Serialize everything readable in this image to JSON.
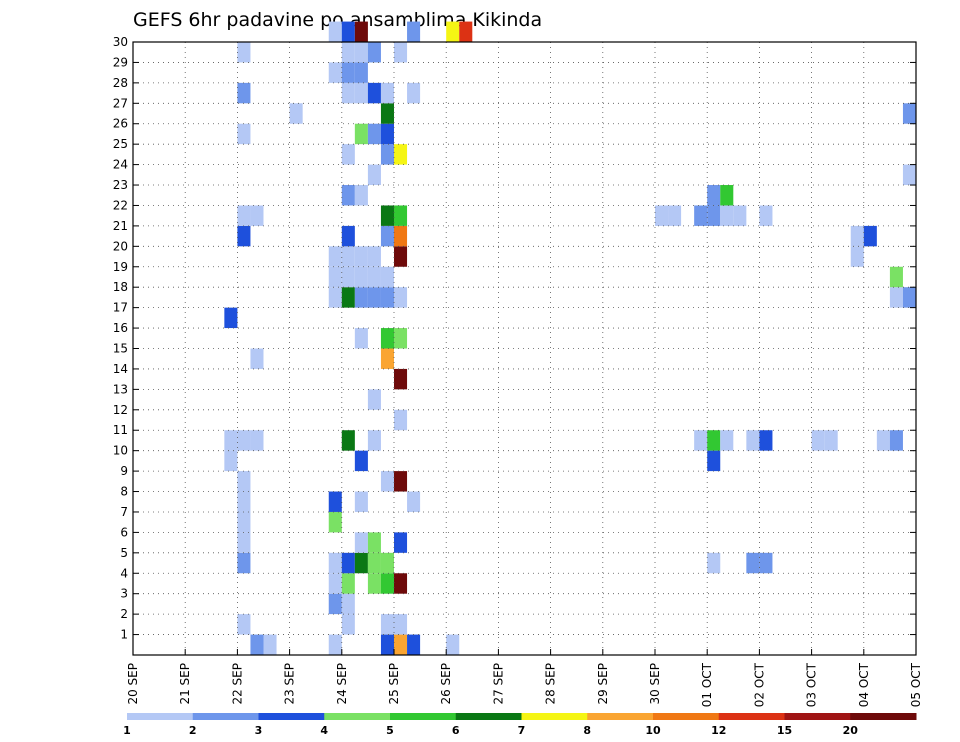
{
  "chart_data": {
    "type": "heatmap",
    "title": "GEFS 6hr padavine po ansamblima Kikinda",
    "xlabel": "",
    "ylabel": "",
    "x_ticks": [
      "20 SEP",
      "21 SEP",
      "22 SEP",
      "23 SEP",
      "24 SEP",
      "25 SEP",
      "26 SEP",
      "27 SEP",
      "28 SEP",
      "29 SEP",
      "30 SEP",
      "01 OCT",
      "02 OCT",
      "03 OCT",
      "04 OCT",
      "05 OCT"
    ],
    "y_ticks": [
      "1",
      "2",
      "3",
      "4",
      "5",
      "6",
      "7",
      "8",
      "9",
      "10",
      "11",
      "12",
      "13",
      "14",
      "15",
      "16",
      "17",
      "18",
      "19",
      "20",
      "21",
      "22",
      "23",
      "24",
      "25",
      "26",
      "27",
      "28",
      "29",
      "30"
    ],
    "x_range_days": [
      0,
      15
    ],
    "y_range": [
      0,
      30
    ],
    "grid": true,
    "colorbar": {
      "levels": [
        "1",
        "2",
        "3",
        "4",
        "5",
        "6",
        "7",
        "8",
        "10",
        "12",
        "15",
        "20"
      ],
      "colors": [
        "#b4c8f5",
        "#6e96eb",
        "#1e50dc",
        "#7ae164",
        "#32c832",
        "#0a7814",
        "#f5f514",
        "#faa532",
        "#f07814",
        "#dc3214",
        "#a01414",
        "#6e0a0a"
      ]
    },
    "cells": [
      {
        "d": 2,
        "s": 1,
        "m": 0,
        "c": 1
      },
      {
        "d": 2,
        "s": 0,
        "m": 1,
        "c": 0
      },
      {
        "d": 2,
        "s": 0,
        "m": 4,
        "c": 1
      },
      {
        "d": 2,
        "s": 0,
        "m": 5,
        "c": 0
      },
      {
        "d": 2,
        "s": 0,
        "m": 6,
        "c": 0
      },
      {
        "d": 2,
        "s": 0,
        "m": 7,
        "c": 0
      },
      {
        "d": 2,
        "s": 0,
        "m": 8,
        "c": 0
      },
      {
        "d": 1,
        "s": 3,
        "m": 9,
        "c": 0
      },
      {
        "d": 1,
        "s": 3,
        "m": 10,
        "c": 0
      },
      {
        "d": 2,
        "s": 0,
        "m": 10,
        "c": 0
      },
      {
        "d": 2,
        "s": 1,
        "m": 10,
        "c": 0
      },
      {
        "d": 2,
        "s": 1,
        "m": 14,
        "c": 0
      },
      {
        "d": 1,
        "s": 3,
        "m": 16,
        "c": 2
      },
      {
        "d": 2,
        "s": 0,
        "m": 20,
        "c": 2
      },
      {
        "d": 2,
        "s": 0,
        "m": 21,
        "c": 0
      },
      {
        "d": 2,
        "s": 1,
        "m": 21,
        "c": 0
      },
      {
        "d": 2,
        "s": 0,
        "m": 25,
        "c": 0
      },
      {
        "d": 2,
        "s": 0,
        "m": 27,
        "c": 1
      },
      {
        "d": 2,
        "s": 0,
        "m": 29,
        "c": 0
      },
      {
        "d": 2,
        "s": 2,
        "m": 0,
        "c": 0
      },
      {
        "d": 3,
        "s": 0,
        "m": 26,
        "c": 0
      },
      {
        "d": 3,
        "s": 3,
        "m": 0,
        "c": 0
      },
      {
        "d": 3,
        "s": 3,
        "m": 2,
        "c": 1
      },
      {
        "d": 3,
        "s": 3,
        "m": 3,
        "c": 0
      },
      {
        "d": 3,
        "s": 3,
        "m": 4,
        "c": 0
      },
      {
        "d": 3,
        "s": 3,
        "m": 6,
        "c": 3
      },
      {
        "d": 3,
        "s": 3,
        "m": 7,
        "c": 2
      },
      {
        "d": 3,
        "s": 3,
        "m": 17,
        "c": 0
      },
      {
        "d": 3,
        "s": 3,
        "m": 18,
        "c": 0
      },
      {
        "d": 3,
        "s": 3,
        "m": 19,
        "c": 0
      },
      {
        "d": 3,
        "s": 3,
        "m": 28,
        "c": 0
      },
      {
        "d": 3,
        "s": 3,
        "m": 30,
        "c": 0
      },
      {
        "d": 4,
        "s": 0,
        "m": 1,
        "c": 0
      },
      {
        "d": 4,
        "s": 0,
        "m": 2,
        "c": 0
      },
      {
        "d": 4,
        "s": 0,
        "m": 3,
        "c": 3
      },
      {
        "d": 4,
        "s": 0,
        "m": 4,
        "c": 2
      },
      {
        "d": 4,
        "s": 0,
        "m": 10,
        "c": 5
      },
      {
        "d": 4,
        "s": 0,
        "m": 17,
        "c": 5
      },
      {
        "d": 4,
        "s": 0,
        "m": 18,
        "c": 0
      },
      {
        "d": 4,
        "s": 0,
        "m": 19,
        "c": 0
      },
      {
        "d": 4,
        "s": 0,
        "m": 20,
        "c": 2
      },
      {
        "d": 4,
        "s": 0,
        "m": 22,
        "c": 1
      },
      {
        "d": 4,
        "s": 0,
        "m": 24,
        "c": 0
      },
      {
        "d": 4,
        "s": 0,
        "m": 27,
        "c": 0
      },
      {
        "d": 4,
        "s": 0,
        "m": 28,
        "c": 1
      },
      {
        "d": 4,
        "s": 0,
        "m": 29,
        "c": 0
      },
      {
        "d": 4,
        "s": 0,
        "m": 30,
        "c": 2
      },
      {
        "d": 4,
        "s": 1,
        "m": 4,
        "c": 5
      },
      {
        "d": 4,
        "s": 1,
        "m": 5,
        "c": 0
      },
      {
        "d": 4,
        "s": 1,
        "m": 7,
        "c": 0
      },
      {
        "d": 4,
        "s": 1,
        "m": 9,
        "c": 2
      },
      {
        "d": 4,
        "s": 1,
        "m": 15,
        "c": 0
      },
      {
        "d": 4,
        "s": 1,
        "m": 17,
        "c": 1
      },
      {
        "d": 4,
        "s": 1,
        "m": 18,
        "c": 0
      },
      {
        "d": 4,
        "s": 1,
        "m": 19,
        "c": 0
      },
      {
        "d": 4,
        "s": 1,
        "m": 22,
        "c": 0
      },
      {
        "d": 4,
        "s": 1,
        "m": 25,
        "c": 3
      },
      {
        "d": 4,
        "s": 1,
        "m": 27,
        "c": 0
      },
      {
        "d": 4,
        "s": 1,
        "m": 28,
        "c": 1
      },
      {
        "d": 4,
        "s": 1,
        "m": 29,
        "c": 0
      },
      {
        "d": 4,
        "s": 1,
        "m": 30,
        "c": 11
      },
      {
        "d": 4,
        "s": 2,
        "m": 3,
        "c": 3
      },
      {
        "d": 4,
        "s": 2,
        "m": 4,
        "c": 3
      },
      {
        "d": 4,
        "s": 2,
        "m": 5,
        "c": 3
      },
      {
        "d": 4,
        "s": 2,
        "m": 10,
        "c": 0
      },
      {
        "d": 4,
        "s": 2,
        "m": 12,
        "c": 0
      },
      {
        "d": 4,
        "s": 2,
        "m": 17,
        "c": 1
      },
      {
        "d": 4,
        "s": 2,
        "m": 18,
        "c": 0
      },
      {
        "d": 4,
        "s": 2,
        "m": 19,
        "c": 0
      },
      {
        "d": 4,
        "s": 2,
        "m": 23,
        "c": 0
      },
      {
        "d": 4,
        "s": 2,
        "m": 25,
        "c": 1
      },
      {
        "d": 4,
        "s": 2,
        "m": 27,
        "c": 2
      },
      {
        "d": 4,
        "s": 2,
        "m": 29,
        "c": 1
      },
      {
        "d": 4,
        "s": 3,
        "m": 0,
        "c": 2
      },
      {
        "d": 4,
        "s": 3,
        "m": 1,
        "c": 0
      },
      {
        "d": 4,
        "s": 3,
        "m": 3,
        "c": 4
      },
      {
        "d": 4,
        "s": 3,
        "m": 4,
        "c": 3
      },
      {
        "d": 4,
        "s": 3,
        "m": 8,
        "c": 0
      },
      {
        "d": 4,
        "s": 3,
        "m": 14,
        "c": 7
      },
      {
        "d": 4,
        "s": 3,
        "m": 15,
        "c": 4
      },
      {
        "d": 4,
        "s": 3,
        "m": 17,
        "c": 1
      },
      {
        "d": 4,
        "s": 3,
        "m": 18,
        "c": 0
      },
      {
        "d": 4,
        "s": 3,
        "m": 20,
        "c": 1
      },
      {
        "d": 4,
        "s": 3,
        "m": 21,
        "c": 5
      },
      {
        "d": 4,
        "s": 3,
        "m": 24,
        "c": 1
      },
      {
        "d": 4,
        "s": 3,
        "m": 25,
        "c": 2
      },
      {
        "d": 4,
        "s": 3,
        "m": 26,
        "c": 5
      },
      {
        "d": 4,
        "s": 3,
        "m": 27,
        "c": 0
      },
      {
        "d": 5,
        "s": 0,
        "m": 0,
        "c": 7
      },
      {
        "d": 5,
        "s": 0,
        "m": 1,
        "c": 0
      },
      {
        "d": 5,
        "s": 0,
        "m": 3,
        "c": 11
      },
      {
        "d": 5,
        "s": 0,
        "m": 5,
        "c": 2
      },
      {
        "d": 5,
        "s": 0,
        "m": 8,
        "c": 11
      },
      {
        "d": 5,
        "s": 0,
        "m": 11,
        "c": 0
      },
      {
        "d": 5,
        "s": 0,
        "m": 13,
        "c": 11
      },
      {
        "d": 5,
        "s": 0,
        "m": 15,
        "c": 3
      },
      {
        "d": 5,
        "s": 0,
        "m": 17,
        "c": 0
      },
      {
        "d": 5,
        "s": 0,
        "m": 19,
        "c": 11
      },
      {
        "d": 5,
        "s": 0,
        "m": 20,
        "c": 8
      },
      {
        "d": 5,
        "s": 0,
        "m": 21,
        "c": 4
      },
      {
        "d": 5,
        "s": 0,
        "m": 24,
        "c": 6
      },
      {
        "d": 5,
        "s": 0,
        "m": 29,
        "c": 0
      },
      {
        "d": 5,
        "s": 1,
        "m": 0,
        "c": 2
      },
      {
        "d": 5,
        "s": 1,
        "m": 7,
        "c": 0
      },
      {
        "d": 5,
        "s": 1,
        "m": 27,
        "c": 0
      },
      {
        "d": 5,
        "s": 1,
        "m": 30,
        "c": 1
      },
      {
        "d": 6,
        "s": 0,
        "m": 0,
        "c": 0
      },
      {
        "d": 6,
        "s": 0,
        "m": 30,
        "c": 6
      },
      {
        "d": 6,
        "s": 1,
        "m": 30,
        "c": 9
      },
      {
        "d": 10,
        "s": 0,
        "m": 21,
        "c": 0
      },
      {
        "d": 10,
        "s": 1,
        "m": 21,
        "c": 0
      },
      {
        "d": 10,
        "s": 3,
        "m": 21,
        "c": 1
      },
      {
        "d": 10,
        "s": 3,
        "m": 10,
        "c": 0
      },
      {
        "d": 11,
        "s": 0,
        "m": 21,
        "c": 1
      },
      {
        "d": 11,
        "s": 0,
        "m": 22,
        "c": 1
      },
      {
        "d": 11,
        "s": 0,
        "m": 4,
        "c": 0
      },
      {
        "d": 11,
        "s": 0,
        "m": 10,
        "c": 4
      },
      {
        "d": 11,
        "s": 0,
        "m": 9,
        "c": 2
      },
      {
        "d": 11,
        "s": 1,
        "m": 21,
        "c": 0
      },
      {
        "d": 11,
        "s": 1,
        "m": 22,
        "c": 4
      },
      {
        "d": 11,
        "s": 1,
        "m": 10,
        "c": 0
      },
      {
        "d": 11,
        "s": 2,
        "m": 21,
        "c": 0
      },
      {
        "d": 11,
        "s": 3,
        "m": 4,
        "c": 1
      },
      {
        "d": 11,
        "s": 3,
        "m": 10,
        "c": 0
      },
      {
        "d": 12,
        "s": 0,
        "m": 4,
        "c": 1
      },
      {
        "d": 12,
        "s": 0,
        "m": 10,
        "c": 2
      },
      {
        "d": 12,
        "s": 0,
        "m": 21,
        "c": 0
      },
      {
        "d": 13,
        "s": 0,
        "m": 10,
        "c": 0
      },
      {
        "d": 13,
        "s": 1,
        "m": 10,
        "c": 0
      },
      {
        "d": 13,
        "s": 3,
        "m": 19,
        "c": 0
      },
      {
        "d": 13,
        "s": 3,
        "m": 20,
        "c": 0
      },
      {
        "d": 14,
        "s": 0,
        "m": 20,
        "c": 2
      },
      {
        "d": 14,
        "s": 1,
        "m": 10,
        "c": 0
      },
      {
        "d": 14,
        "s": 2,
        "m": 10,
        "c": 1
      },
      {
        "d": 14,
        "s": 2,
        "m": 17,
        "c": 0
      },
      {
        "d": 14,
        "s": 2,
        "m": 18,
        "c": 3
      },
      {
        "d": 14,
        "s": 3,
        "m": 17,
        "c": 1
      },
      {
        "d": 14,
        "s": 3,
        "m": 23,
        "c": 0
      },
      {
        "d": 14,
        "s": 3,
        "m": 26,
        "c": 1
      }
    ]
  }
}
